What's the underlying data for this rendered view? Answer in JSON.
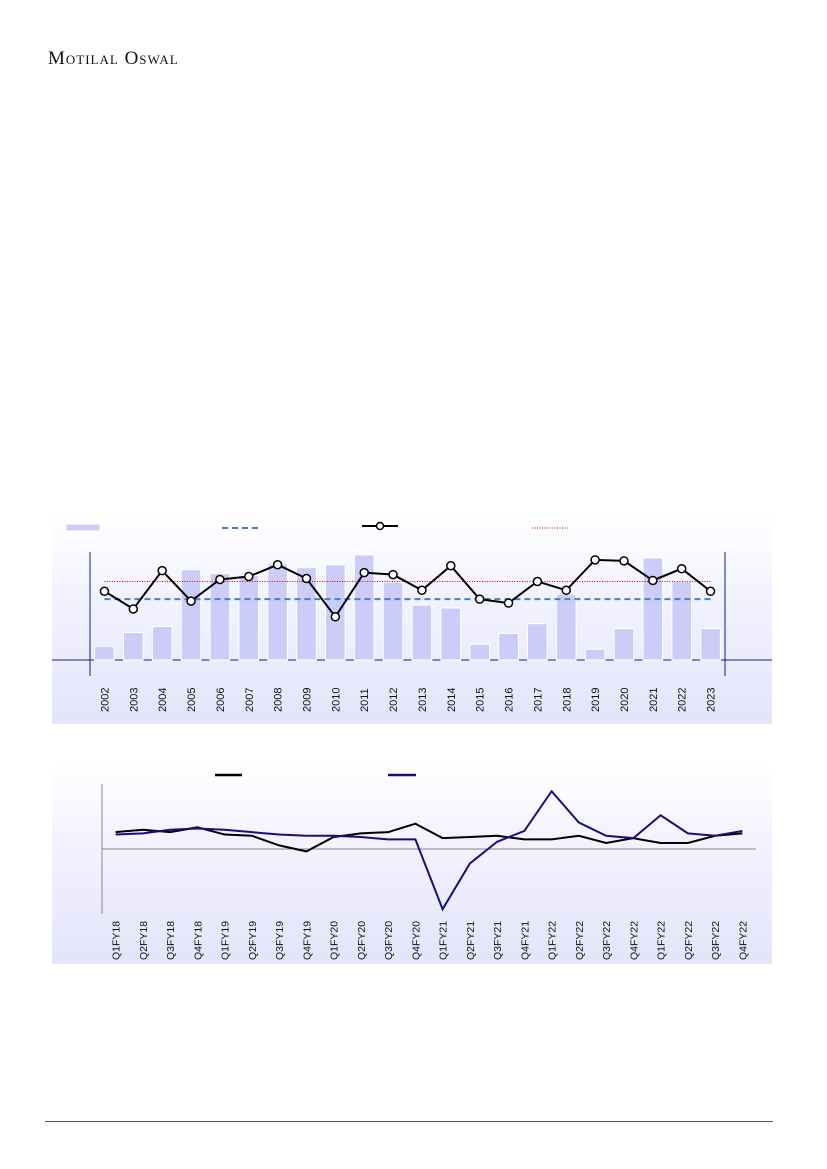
{
  "header": {
    "logo_text": "Motilal Oswal"
  },
  "colors": {
    "bar_fill": "#ccccf8",
    "bar_stroke": "#ffffff",
    "avg_dashed": "#4a7fc1",
    "line_black": "#000000",
    "ref_red": "#cc0000",
    "navy_line": "#1a0f7a",
    "axis_navy": "#1a1a8c"
  },
  "chart_data": [
    {
      "type": "bar",
      "legend_placement": "top",
      "categories": [
        "2002",
        "2003",
        "2004",
        "2005",
        "2006",
        "2007",
        "2008",
        "2009",
        "2010",
        "2011",
        "2012",
        "2013",
        "2014",
        "2015",
        "2016",
        "2017",
        "2018",
        "2019",
        "2020",
        "2021",
        "2022",
        "2023"
      ],
      "series": [
        {
          "kind": "bar",
          "values": [
            14,
            28,
            34,
            92,
            88,
            86,
            98,
            94,
            97,
            107,
            79,
            56,
            53,
            16,
            27,
            37,
            67,
            11,
            32,
            104,
            80,
            32
          ]
        },
        {
          "kind": "line",
          "marker": "circle",
          "values": [
            70,
            52,
            91,
            60,
            82,
            85,
            97,
            83,
            44,
            89,
            87,
            71,
            96,
            62,
            58,
            80,
            71,
            102,
            101,
            81,
            93,
            70
          ]
        },
        {
          "kind": "dashed",
          "values": [
            62,
            62,
            62,
            62,
            62,
            62,
            62,
            62,
            62,
            62,
            62,
            62,
            62,
            62,
            62,
            62,
            62,
            62,
            62,
            62,
            62,
            62
          ]
        },
        {
          "kind": "dotted",
          "values": [
            80,
            80,
            80,
            80,
            80,
            80,
            80,
            80,
            80,
            80,
            80,
            80,
            80,
            80,
            80,
            80,
            80,
            80,
            80,
            80,
            80,
            80
          ]
        }
      ],
      "ylim": [
        0,
        110
      ],
      "grid": false
    },
    {
      "type": "line",
      "legend_placement": "top",
      "categories": [
        "Q1FY18",
        "Q2FY18",
        "Q3FY18",
        "Q4FY18",
        "Q1FY19",
        "Q2FY19",
        "Q3FY19",
        "Q4FY19",
        "Q1FY20",
        "Q2FY20",
        "Q3FY20",
        "Q4FY20",
        "Q1FY21",
        "Q2FY21",
        "Q3FY21",
        "Q4FY21",
        "Q1FY22",
        "Q2FY22",
        "Q3FY22",
        "Q4FY22",
        "Q1FY22",
        "Q2FY22",
        "Q3FY22",
        "Q4FY22"
      ],
      "series": [
        {
          "color": "black",
          "values": [
            7,
            8,
            7,
            9,
            6,
            5.5,
            1.5,
            -1,
            5,
            6.5,
            7,
            10.5,
            4.5,
            5,
            5.5,
            4,
            4,
            5.5,
            2.5,
            4.5,
            2.5,
            2.5,
            5.5,
            6.5
          ]
        },
        {
          "color": "navy",
          "values": [
            6,
            6.5,
            8,
            8.5,
            8,
            7,
            6,
            5.5,
            5.5,
            5,
            4,
            4,
            -25,
            -6,
            3,
            7.5,
            24,
            11,
            5.5,
            4.5,
            14,
            6.5,
            5.5,
            7.5
          ]
        }
      ],
      "ylim": [
        -27,
        27
      ],
      "grid": false
    }
  ]
}
